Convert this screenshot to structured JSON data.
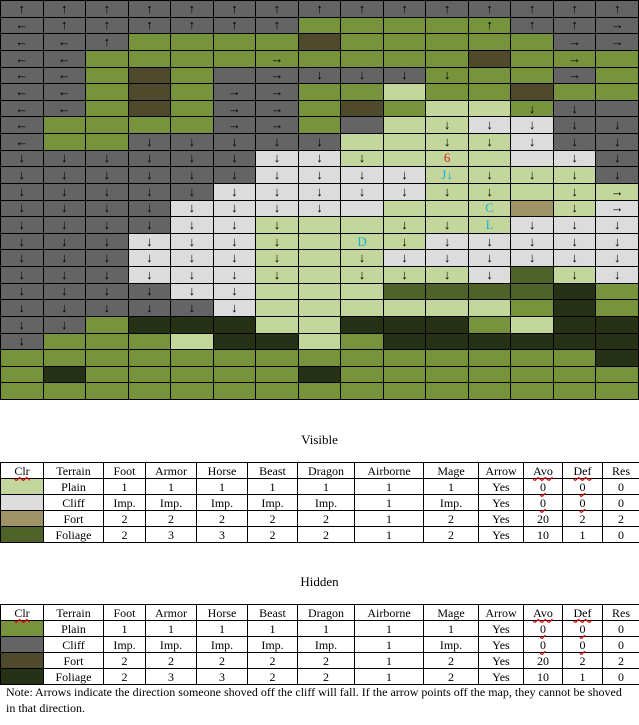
{
  "map": {
    "cols": 15,
    "palette": {
      "V": {
        "class": "t-cv",
        "terrain": "Cliff (visible)",
        "color": "#dcdcdc"
      },
      "C": {
        "class": "t-ch",
        "terrain": "Cliff (hidden)",
        "color": "#646464"
      },
      "P": {
        "class": "t-pv",
        "terrain": "Plain (visible)",
        "color": "#c3d69b"
      },
      "p": {
        "class": "t-ph",
        "terrain": "Plain (hidden)",
        "color": "#77933c"
      },
      "F": {
        "class": "t-fv",
        "terrain": "Fort (visible)",
        "color": "#a09366"
      },
      "f": {
        "class": "t-fh",
        "terrain": "Fort (hidden)",
        "color": "#4f4a2c"
      },
      "G": {
        "class": "t-gv",
        "terrain": "Foliage (visible)",
        "color": "#4f6228"
      },
      "g": {
        "class": "t-gh",
        "terrain": "Foliage (hidden)",
        "color": "#263116"
      }
    },
    "rows": [
      "CCCCCCCCCCCCCCC",
      "CCCCCCCpppppCCC",
      "CCCppppfpppppCC",
      "CCpppppppppfppp",
      "CCpfpCCCCCpppCp",
      "CCpfpCCppPppfpp",
      "CCpfpCCpfpPPpCC",
      "CppppCCpCPPVVCC",
      "CppCCCCCPPPPVCC",
      "CCCCCCVVPPPPVVC",
      "CCCCCCVVVVPPPPC",
      "CCCCCVVVVVPPPPP",
      "CCCCVVVVVPPPFPV",
      "CCCCVVPPPPPPVVV",
      "CCCVVVPPPPVVVVV",
      "CCCVVVPPPVVVVVV",
      "CCCVVVPPPPPVGPV",
      "CCCCVVPPPGGGGgp",
      "CCCCCVPPPPPPpgp",
      "CCpgggPPgggpPgg",
      "CpppPggPpgggggg",
      "ppppppppppppppg",
      "pgpppppgppppppp",
      "ppppppppppppppp"
    ],
    "marks": [
      [
        "↑",
        "↑",
        "↑",
        "↑",
        "↑",
        "↑",
        "↑",
        "↑",
        "↑",
        "↑",
        "↑",
        "↑",
        "↑",
        "↑",
        "↑"
      ],
      [
        "←",
        "↑",
        "↑",
        "↑",
        "↑",
        "↑",
        "↑",
        "",
        "",
        "",
        "",
        "↑",
        "↑",
        "↑",
        "→"
      ],
      [
        "←",
        "←",
        "↑",
        "",
        "",
        "",
        "",
        "",
        "",
        "",
        "",
        "",
        "",
        "→",
        "→"
      ],
      [
        "←",
        "←",
        "",
        "",
        "",
        "",
        "→",
        "",
        "",
        "",
        "",
        "",
        "",
        "→",
        ""
      ],
      [
        "←",
        "←",
        "",
        "",
        "",
        "",
        "→",
        "↓",
        "↓",
        "↓",
        "↓",
        "",
        "",
        "→",
        ""
      ],
      [
        "←",
        "←",
        "",
        "",
        "",
        "→",
        "→",
        "",
        "",
        "",
        "",
        "",
        "",
        "",
        ""
      ],
      [
        "←",
        "←",
        "",
        "",
        "",
        "→",
        "→",
        "",
        "",
        "",
        "",
        "",
        "↓",
        "↓",
        ""
      ],
      [
        "←",
        "",
        "",
        "",
        "",
        "→",
        "→",
        "",
        "",
        "",
        "↓",
        "↓",
        "↓",
        "↓",
        "↓"
      ],
      [
        "←",
        "",
        "",
        "↓",
        "↓",
        "↓",
        "↓",
        "↓",
        "",
        "",
        "↓",
        "↓",
        "↓",
        "↓",
        "↓"
      ],
      [
        "↓",
        "↓",
        "↓",
        "↓",
        "↓",
        "↓",
        "↓",
        "↓",
        "↓",
        "",
        "6",
        "",
        "",
        "↓",
        "↓"
      ],
      [
        "↓",
        "↓",
        "↓",
        "↓",
        "↓",
        "↓",
        "↓",
        "↓",
        "↓",
        "↓",
        "J↓",
        "↓",
        "↓",
        "↓",
        "↓"
      ],
      [
        "↓",
        "↓",
        "↓",
        "↓",
        "↓",
        "↓",
        "↓",
        "↓",
        "↓",
        "↓",
        "↓",
        "↓",
        "",
        "↓",
        "→"
      ],
      [
        "↓",
        "↓",
        "↓",
        "↓",
        "↓",
        "↓",
        "↓",
        "↓",
        "",
        "",
        "",
        "C",
        "",
        "↓",
        "→"
      ],
      [
        "↓",
        "↓",
        "↓",
        "↓",
        "↓",
        "↓",
        "↓",
        "",
        "",
        "↓",
        "↓",
        "L",
        "↓",
        "↓",
        "↓"
      ],
      [
        "↓",
        "↓",
        "↓",
        "↓",
        "↓",
        "↓",
        "↓",
        "",
        "D",
        "↓",
        "↓",
        "↓",
        "↓",
        "↓",
        "↓"
      ],
      [
        "↓",
        "↓",
        "↓",
        "↓",
        "↓",
        "↓",
        "↓",
        "",
        "↓",
        "↓",
        "↓",
        "↓",
        "↓",
        "↓",
        "↓"
      ],
      [
        "↓",
        "↓",
        "↓",
        "↓",
        "↓",
        "↓",
        "↓",
        "",
        "↓",
        "↓",
        "↓",
        "↓",
        "",
        "↓",
        "↓"
      ],
      [
        "↓",
        "↓",
        "↓",
        "↓",
        "↓",
        "↓",
        "",
        "",
        "",
        "",
        "",
        "",
        "",
        "",
        ""
      ],
      [
        "↓",
        "↓",
        "↓",
        "↓",
        "↓",
        "↓",
        "",
        "",
        "",
        "",
        "",
        "",
        "",
        "",
        ""
      ],
      [
        "↓",
        "↓",
        "",
        "",
        "",
        "",
        "",
        "",
        "",
        "",
        "",
        "",
        "",
        "",
        ""
      ],
      [
        "↓",
        "",
        "",
        "",
        "",
        "",
        "",
        "",
        "",
        "",
        "",
        "",
        "",
        "",
        ""
      ],
      [
        "",
        "",
        "",
        "",
        "",
        "",
        "",
        "",
        "",
        "",
        "",
        "",
        "",
        "",
        ""
      ],
      [
        "",
        "",
        "",
        "",
        "",
        "",
        "",
        "",
        "",
        "",
        "",
        "",
        "",
        "",
        ""
      ],
      [
        "",
        "",
        "",
        "",
        "",
        "",
        "",
        "",
        "",
        "",
        "",
        "",
        "",
        "",
        ""
      ]
    ],
    "red_marks": [
      "6"
    ],
    "cyan_marks": [
      "J↓",
      "C",
      "L",
      "D"
    ]
  },
  "visible_title": "Visible",
  "hidden_title": "Hidden",
  "headers": [
    "Clr",
    "Terrain",
    "Foot",
    "Armor",
    "Horse",
    "Beast",
    "Dragon",
    "Airborne",
    "Mage",
    "Arrow",
    "Avo",
    "Def",
    "Res"
  ],
  "visible_table": [
    {
      "color": "#c3d69b",
      "cells": [
        "Plain",
        "1",
        "1",
        "1",
        "1",
        "1",
        "1",
        "1",
        "Yes",
        "0",
        "0",
        "0"
      ]
    },
    {
      "color": "#dcdcdc",
      "cells": [
        "Cliff",
        "Imp.",
        "Imp.",
        "Imp.",
        "Imp.",
        "Imp.",
        "1",
        "Imp.",
        "Yes",
        "0",
        "0",
        "0"
      ]
    },
    {
      "color": "#a09366",
      "cells": [
        "Fort",
        "2",
        "2",
        "2",
        "2",
        "2",
        "1",
        "2",
        "Yes",
        "20",
        "2",
        "2"
      ]
    },
    {
      "color": "#4f6228",
      "cells": [
        "Foliage",
        "2",
        "3",
        "3",
        "2",
        "2",
        "1",
        "2",
        "Yes",
        "10",
        "1",
        "0"
      ]
    }
  ],
  "hidden_table": [
    {
      "color": "#77933c",
      "cells": [
        "Plain",
        "1",
        "1",
        "1",
        "1",
        "1",
        "1",
        "1",
        "Yes",
        "0",
        "0",
        "0"
      ]
    },
    {
      "color": "#646464",
      "cells": [
        "Cliff",
        "Imp.",
        "Imp.",
        "Imp.",
        "Imp.",
        "Imp.",
        "1",
        "Imp.",
        "Yes",
        "0",
        "0",
        "0"
      ]
    },
    {
      "color": "#4f4a2c",
      "cells": [
        "Fort",
        "2",
        "2",
        "2",
        "2",
        "2",
        "1",
        "2",
        "Yes",
        "20",
        "2",
        "2"
      ]
    },
    {
      "color": "#263116",
      "cells": [
        "Foliage",
        "2",
        "3",
        "3",
        "2",
        "2",
        "1",
        "2",
        "Yes",
        "10",
        "1",
        "0"
      ]
    }
  ],
  "note": "Note: Arrows indicate the direction someone shoved off the cliff will fall. If the arrow points off the map, they cannot be shoved in that direction."
}
